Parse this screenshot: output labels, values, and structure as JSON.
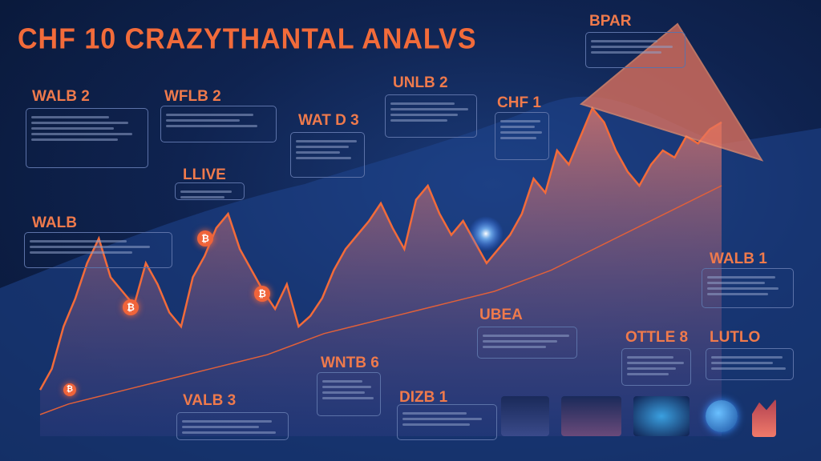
{
  "title": "CHF 10 CRAZYTHANTAL ANALVS",
  "colors": {
    "accent": "#f26b3a",
    "background": "#0f2350",
    "trend": "#e0603a",
    "box_border": "#5c72a8"
  },
  "callouts": [
    {
      "label": "WALB 2"
    },
    {
      "label": "WFLB 2"
    },
    {
      "label": "WAT D 3"
    },
    {
      "label": "UNLB 2"
    },
    {
      "label": "CHF 1"
    },
    {
      "label": "BPAR"
    },
    {
      "label": "LLIVE"
    },
    {
      "label": "WALB"
    },
    {
      "label": "WALB 1"
    },
    {
      "label": "UBEA"
    },
    {
      "label": "OTTLE 8"
    },
    {
      "label": "LUTLO"
    },
    {
      "label": "WNTB 6"
    },
    {
      "label": "VALB 3"
    },
    {
      "label": "DIZB 1"
    }
  ],
  "coin_symbol": "₿",
  "icons": [
    "bitcoin-coin-icon",
    "globe-icon",
    "triangle-arrow-icon"
  ],
  "chart_data": {
    "type": "area",
    "title": "CHF 10 CRAZYTHANTAL ANALVS",
    "xlabel": "",
    "ylabel": "",
    "ylim": [
      0,
      100
    ],
    "grid": false,
    "series": [
      {
        "values": [
          12,
          18,
          30,
          38,
          48,
          55,
          44,
          40,
          36,
          48,
          42,
          34,
          30,
          44,
          50,
          58,
          62,
          52,
          46,
          40,
          35,
          42,
          30,
          33,
          38,
          46,
          52,
          56,
          60,
          65,
          58,
          52,
          66,
          70,
          62,
          56,
          60,
          54,
          48,
          52,
          56,
          62,
          72,
          68,
          80,
          76,
          84,
          92,
          88,
          80,
          74,
          70,
          76,
          80,
          78,
          84,
          82,
          86,
          88
        ]
      },
      {
        "values": [
          5,
          8,
          10,
          12,
          14,
          16,
          18,
          20,
          22,
          25,
          28,
          30,
          32,
          34,
          36,
          38,
          40,
          43,
          46,
          50,
          54,
          58,
          62,
          66,
          70
        ]
      }
    ]
  }
}
